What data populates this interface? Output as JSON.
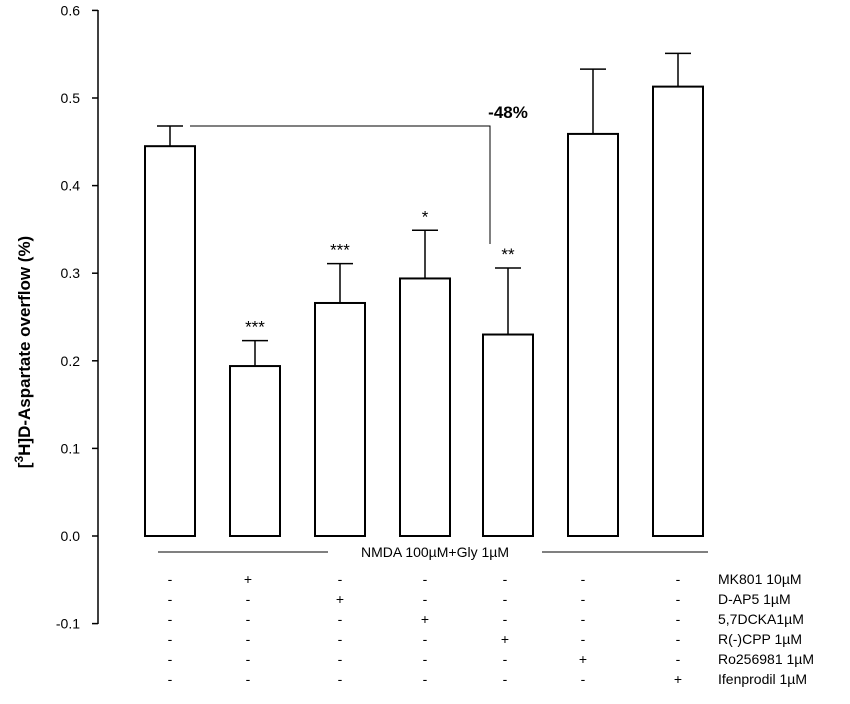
{
  "chart_data": {
    "type": "bar",
    "ylabel_super": "3",
    "ylabel_rest": "H]D-Aspartate overflow (%)",
    "ylabel_open": "[",
    "ylim": [
      -0.1,
      0.6
    ],
    "yticks": [
      "0.6",
      "0.5",
      "0.4",
      "0.3",
      "0.2",
      "0.1",
      "0.0",
      "-0.1"
    ],
    "ytick_values": [
      0.6,
      0.5,
      0.4,
      0.3,
      0.2,
      0.1,
      0.0,
      -0.1
    ],
    "values": [
      0.445,
      0.194,
      0.266,
      0.294,
      0.23,
      0.459,
      0.513
    ],
    "errors": [
      0.023,
      0.029,
      0.045,
      0.055,
      0.076,
      0.074,
      0.038
    ],
    "significance": [
      "",
      "***",
      "***",
      "*",
      "**",
      "",
      ""
    ],
    "comparison_label": "-48%",
    "baseline_label": "NMDA 100µM+Gly 1µM",
    "treatments": [
      {
        "label": "MK801 10µM",
        "marks": [
          "-",
          "+",
          "-",
          "-",
          "-",
          "-",
          "-"
        ]
      },
      {
        "label": "D-AP5 1µM",
        "marks": [
          "-",
          "-",
          "+",
          "-",
          "-",
          "-",
          "-"
        ]
      },
      {
        "label": "5,7DCKA1µM",
        "marks": [
          "-",
          "-",
          "-",
          "+",
          "-",
          "-",
          "-"
        ]
      },
      {
        "label": "R(-)CPP 1µM",
        "marks": [
          "-",
          "-",
          "-",
          "-",
          "+",
          "-",
          "-"
        ]
      },
      {
        "label": "Ro256981 1µM",
        "marks": [
          "-",
          "-",
          "-",
          "-",
          "-",
          "+",
          "-"
        ]
      },
      {
        "label": "Ifenprodil 1µM",
        "marks": [
          "-",
          "-",
          "-",
          "-",
          "-",
          "-",
          "+"
        ]
      }
    ],
    "colors": {
      "bar_fill": "#ffffff",
      "stroke": "#000000"
    }
  }
}
